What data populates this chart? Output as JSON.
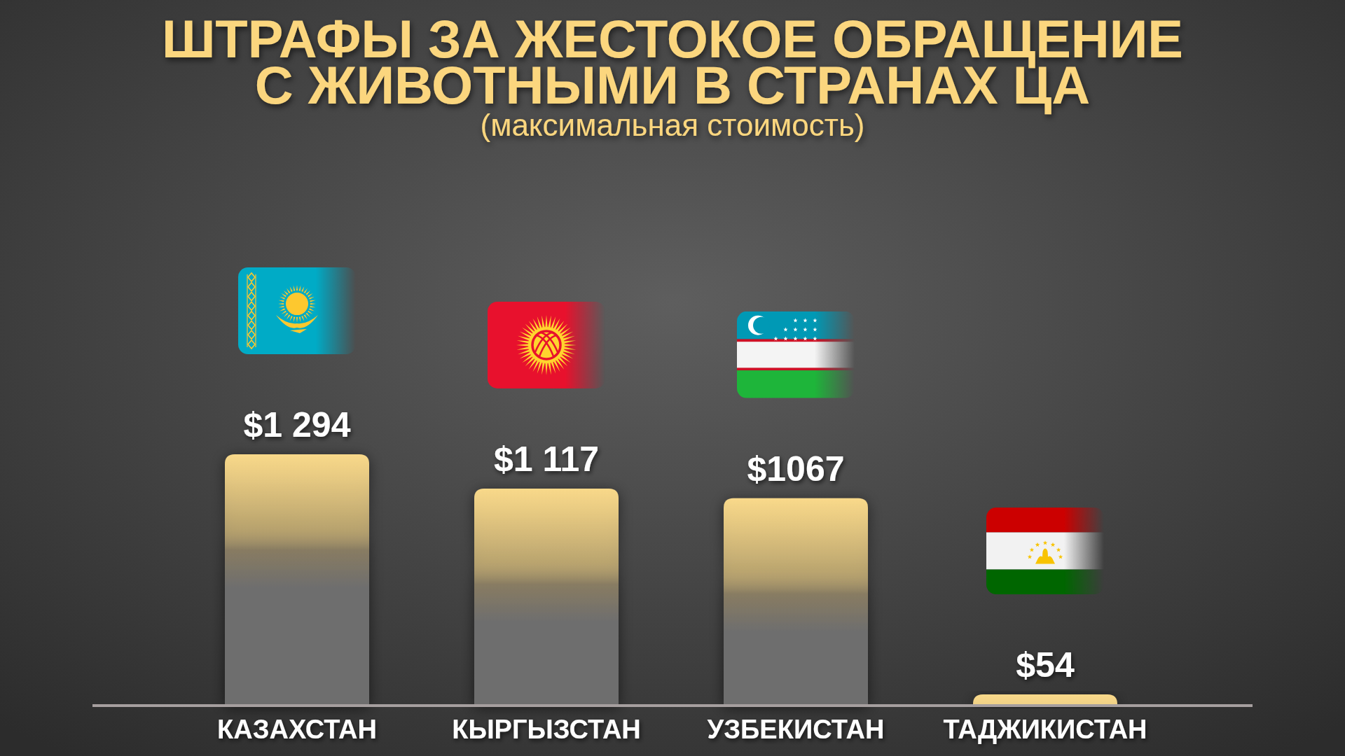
{
  "chart_data": {
    "type": "bar",
    "title": "ШТРАФЫ ЗА ЖЕСТОКОЕ ОБРАЩЕНИЕ С ЖИВОТНЫМИ В СТРАНАХ ЦА",
    "subtitle": "(максимальная стоимость)",
    "categories": [
      "КАЗАХСТАН",
      "КЫРГЫЗСТАН",
      "УЗБЕКИСТАН",
      "ТАДЖИКИСТАН"
    ],
    "values": [
      1294,
      1117,
      1067,
      54
    ],
    "value_labels": [
      "$1 294",
      "$1 117",
      "$1067",
      "$54"
    ],
    "color": "#f9d98a"
  }
}
